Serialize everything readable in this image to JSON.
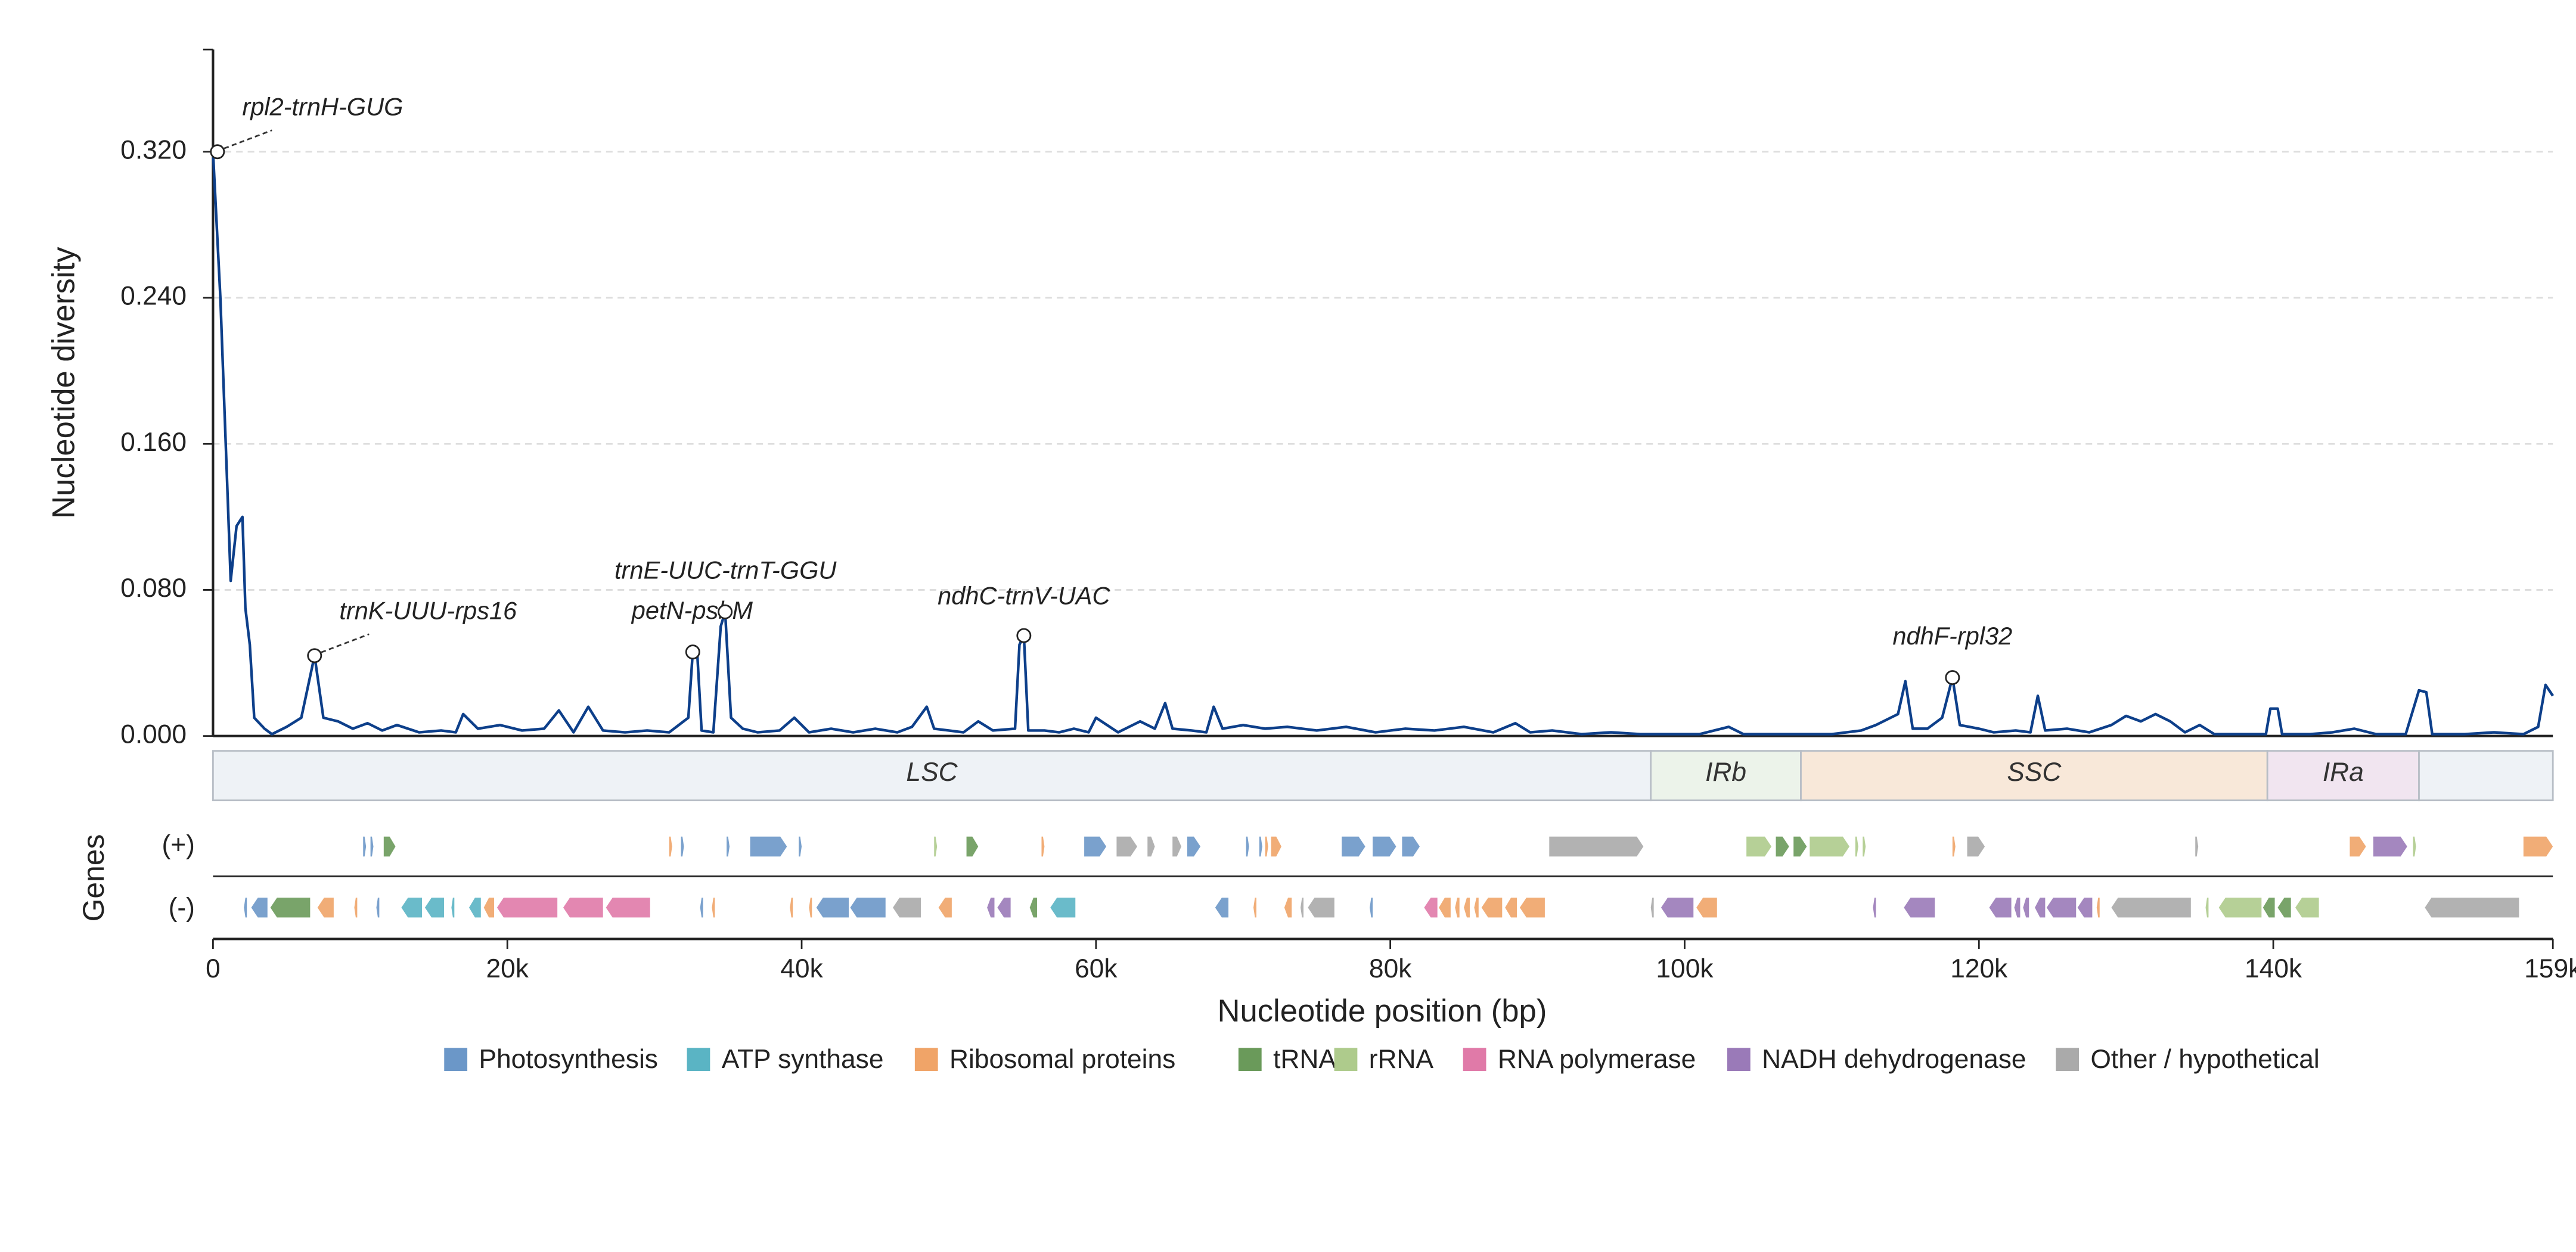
{
  "chart_data": {
    "type": "line",
    "xlabel": "Nucleotide position (bp)",
    "ylabel": "Nucleotide diversity",
    "xlim": [
      0,
      159000
    ],
    "ylim": [
      0,
      0.376
    ],
    "xticks": [
      0,
      {
        "value": 20000,
        "label": "20k"
      },
      {
        "value": 40000,
        "label": "40k"
      },
      {
        "value": 60000,
        "label": "60k"
      },
      {
        "value": 80000,
        "label": "80k"
      },
      {
        "value": 100000,
        "label": "100k"
      },
      {
        "value": 120000,
        "label": "120k"
      },
      {
        "value": 140000,
        "label": "140k"
      },
      {
        "value": 159000,
        "label": "159k"
      }
    ],
    "yticks": [
      {
        "value": 0,
        "label": "0.000"
      },
      {
        "value": 0.08,
        "label": "0.080"
      },
      {
        "value": 0.16,
        "label": "0.160"
      },
      {
        "value": 0.24,
        "label": "0.240"
      },
      {
        "value": 0.32,
        "label": "0.320"
      }
    ],
    "grid": true,
    "series": [
      {
        "color": "#0d3f8a",
        "x": [
          0,
          500,
          1000,
          1200,
          1600,
          2000,
          2200,
          2500,
          2800,
          3500,
          4000,
          5000,
          6000,
          6900,
          7500,
          8500,
          9500,
          10500,
          11500,
          12500,
          14000,
          15500,
          16500,
          17000,
          18000,
          19500,
          21000,
          22500,
          23500,
          24500,
          25500,
          26500,
          28000,
          29500,
          31000,
          32300,
          32600,
          32900,
          33200,
          34000,
          34500,
          34800,
          35200,
          36000,
          37000,
          38500,
          39500,
          40500,
          42000,
          43500,
          45000,
          46500,
          47500,
          48500,
          49000,
          50000,
          51000,
          52000,
          53000,
          54500,
          54800,
          55100,
          55400,
          56500,
          57500,
          58500,
          59500,
          60000,
          61500,
          63000,
          64000,
          64700,
          65200,
          66500,
          67500,
          68000,
          68600,
          70000,
          71500,
          73000,
          75000,
          77000,
          79000,
          81000,
          83000,
          85000,
          87000,
          88500,
          89500,
          91000,
          93000,
          95000,
          97000,
          99000,
          101000,
          103000,
          104000,
          106000,
          108000,
          110000,
          112000,
          113000,
          114500,
          115000,
          115500,
          116500,
          117500,
          118200,
          118700,
          120000,
          121000,
          122500,
          123500,
          124000,
          124500,
          126000,
          127500,
          129000,
          130000,
          131000,
          132000,
          133000,
          134000,
          135000,
          136000,
          138000,
          139500,
          139800,
          140300,
          140600,
          142500,
          144000,
          145500,
          147000,
          149000,
          149900,
          150400,
          150800,
          153000,
          155000,
          157000,
          158000,
          158500,
          159000
        ],
        "values": [
          0.32,
          0.24,
          0.13,
          0.085,
          0.115,
          0.12,
          0.07,
          0.05,
          0.01,
          0.004,
          0.001,
          0.005,
          0.01,
          0.044,
          0.01,
          0.008,
          0.004,
          0.007,
          0.003,
          0.006,
          0.002,
          0.003,
          0.002,
          0.012,
          0.004,
          0.006,
          0.003,
          0.004,
          0.014,
          0.002,
          0.016,
          0.003,
          0.002,
          0.003,
          0.002,
          0.01,
          0.046,
          0.046,
          0.003,
          0.002,
          0.06,
          0.068,
          0.01,
          0.004,
          0.002,
          0.003,
          0.01,
          0.002,
          0.004,
          0.002,
          0.004,
          0.002,
          0.005,
          0.016,
          0.004,
          0.003,
          0.002,
          0.008,
          0.003,
          0.004,
          0.05,
          0.055,
          0.003,
          0.003,
          0.002,
          0.004,
          0.002,
          0.01,
          0.002,
          0.008,
          0.004,
          0.018,
          0.004,
          0.003,
          0.002,
          0.016,
          0.004,
          0.006,
          0.004,
          0.005,
          0.003,
          0.005,
          0.002,
          0.004,
          0.003,
          0.005,
          0.002,
          0.007,
          0.002,
          0.003,
          0.001,
          0.002,
          0.001,
          0.001,
          0.001,
          0.005,
          0.001,
          0.001,
          0.001,
          0.001,
          0.003,
          0.006,
          0.012,
          0.03,
          0.004,
          0.004,
          0.01,
          0.032,
          0.006,
          0.004,
          0.002,
          0.003,
          0.002,
          0.022,
          0.003,
          0.004,
          0.002,
          0.006,
          0.011,
          0.008,
          0.012,
          0.008,
          0.002,
          0.006,
          0.001,
          0.001,
          0.001,
          0.015,
          0.015,
          0.001,
          0.001,
          0.002,
          0.004,
          0.001,
          0.001,
          0.025,
          0.024,
          0.001,
          0.001,
          0.002,
          0.001,
          0.005,
          0.028,
          0.022
        ]
      }
    ],
    "annotations": [
      {
        "text": "rpl2-trnH-GUG",
        "x": 300,
        "y": 0.32
      },
      {
        "text": "trnK-UUU-rps16",
        "x": 6900,
        "y": 0.044
      },
      {
        "text": "petN-psbM",
        "x": 32600,
        "y": 0.046
      },
      {
        "text": "trnE-UUC-trnT-GGU",
        "x": 34800,
        "y": 0.068
      },
      {
        "text": "ndhC-trnV-UAC",
        "x": 55100,
        "y": 0.055
      },
      {
        "text": "ndhF-rpl32",
        "x": 118200,
        "y": 0.032
      }
    ],
    "regions": [
      {
        "label": "LSC",
        "start": 0,
        "end": 97700,
        "color": "#eef2f6"
      },
      {
        "label": "IRb",
        "start": 97700,
        "end": 107900,
        "color": "#ecf3ea"
      },
      {
        "label": "SSC",
        "start": 107900,
        "end": 139600,
        "color": "#f8e8d9"
      },
      {
        "label": "IRa",
        "start": 139600,
        "end": 149900,
        "color": "#f1e5f0"
      },
      {
        "label": null,
        "start": 149900,
        "end": 159000,
        "color": "#eef2f6"
      }
    ],
    "gene_track_label": "Genes",
    "strand_labels": [
      "(+)",
      "(-)"
    ],
    "categories": [
      "Photosynthesis",
      "ATP synthase",
      "Ribosomal proteins",
      "tRNA",
      "rRNA",
      "RNA polymerase",
      "NADH dehydrogenase",
      "Other / hypothetical"
    ],
    "category_colors": [
      "#6b97c8",
      "#5ab4c4",
      "#f0a468",
      "#6a9a5a",
      "#aecb8c",
      "#e07aa8",
      "#9a7ab8",
      "#aaaaaa"
    ],
    "genes_plus": [
      [
        10200,
        10400,
        0
      ],
      [
        10700,
        10900,
        0
      ],
      [
        11600,
        12400,
        3
      ],
      [
        31000,
        31200,
        2
      ],
      [
        31800,
        32000,
        0
      ],
      [
        34900,
        35100,
        0
      ],
      [
        36500,
        39000,
        0
      ],
      [
        39800,
        40000,
        0
      ],
      [
        49000,
        49200,
        4
      ],
      [
        51200,
        52000,
        3
      ],
      [
        56300,
        56500,
        2
      ],
      [
        59200,
        60700,
        0
      ],
      [
        61400,
        62800,
        7
      ],
      [
        63500,
        64000,
        7
      ],
      [
        65200,
        65800,
        7
      ],
      [
        66200,
        67100,
        0
      ],
      [
        70200,
        70400,
        0
      ],
      [
        71100,
        71300,
        0
      ],
      [
        71500,
        71700,
        2
      ],
      [
        71900,
        72600,
        2
      ],
      [
        76700,
        78300,
        0
      ],
      [
        78800,
        80400,
        0
      ],
      [
        80800,
        82000,
        0
      ],
      [
        90800,
        97200,
        7
      ],
      [
        104200,
        105900,
        4
      ],
      [
        106200,
        107100,
        3
      ],
      [
        107400,
        108300,
        3
      ],
      [
        108500,
        111200,
        4
      ],
      [
        111600,
        111800,
        4
      ],
      [
        112100,
        112300,
        4
      ],
      [
        118200,
        118400,
        2
      ],
      [
        119200,
        120400,
        7
      ],
      [
        134700,
        134900,
        7
      ],
      [
        145200,
        146300,
        2
      ],
      [
        146800,
        149100,
        6
      ],
      [
        149500,
        149700,
        4
      ],
      [
        157000,
        159000,
        2
      ]
    ],
    "genes_minus": [
      [
        2100,
        2300,
        0
      ],
      [
        2600,
        3700,
        0
      ],
      [
        3900,
        6600,
        3
      ],
      [
        7100,
        8200,
        2
      ],
      [
        9600,
        9800,
        2
      ],
      [
        11100,
        11300,
        0
      ],
      [
        12800,
        14200,
        1
      ],
      [
        14400,
        15700,
        1
      ],
      [
        16200,
        16400,
        1
      ],
      [
        17400,
        18200,
        1
      ],
      [
        18400,
        19100,
        2
      ],
      [
        19300,
        23400,
        5
      ],
      [
        23800,
        26500,
        5
      ],
      [
        26700,
        29700,
        5
      ],
      [
        33100,
        33300,
        0
      ],
      [
        33900,
        34100,
        2
      ],
      [
        39200,
        39400,
        2
      ],
      [
        40500,
        40700,
        2
      ],
      [
        41000,
        43200,
        0
      ],
      [
        43300,
        45700,
        0
      ],
      [
        46200,
        48100,
        7
      ],
      [
        49300,
        50200,
        2
      ],
      [
        52600,
        53100,
        6
      ],
      [
        53300,
        54200,
        6
      ],
      [
        55500,
        56000,
        3
      ],
      [
        56900,
        58600,
        1
      ],
      [
        68100,
        69000,
        0
      ],
      [
        70700,
        70900,
        2
      ],
      [
        72800,
        73300,
        2
      ],
      [
        73900,
        74100,
        7
      ],
      [
        74400,
        76200,
        7
      ],
      [
        78600,
        78800,
        0
      ],
      [
        82300,
        83200,
        5
      ],
      [
        83300,
        84100,
        2
      ],
      [
        84400,
        84700,
        2
      ],
      [
        85000,
        85400,
        2
      ],
      [
        85700,
        86000,
        2
      ],
      [
        86200,
        87600,
        2
      ],
      [
        87800,
        88600,
        2
      ],
      [
        88800,
        90500,
        2
      ],
      [
        97700,
        97900,
        7
      ],
      [
        98400,
        100600,
        6
      ],
      [
        100800,
        102200,
        2
      ],
      [
        112800,
        113000,
        6
      ],
      [
        114900,
        117000,
        6
      ],
      [
        120700,
        122200,
        6
      ],
      [
        122400,
        122800,
        6
      ],
      [
        123000,
        123400,
        6
      ],
      [
        123800,
        124500,
        6
      ],
      [
        124600,
        126600,
        6
      ],
      [
        126700,
        127700,
        6
      ],
      [
        128000,
        128200,
        2
      ],
      [
        129000,
        134400,
        7
      ],
      [
        135400,
        135600,
        4
      ],
      [
        136300,
        139200,
        4
      ],
      [
        139300,
        140100,
        3
      ],
      [
        140300,
        141200,
        3
      ],
      [
        141500,
        143100,
        4
      ],
      [
        150300,
        156700,
        7
      ]
    ]
  }
}
